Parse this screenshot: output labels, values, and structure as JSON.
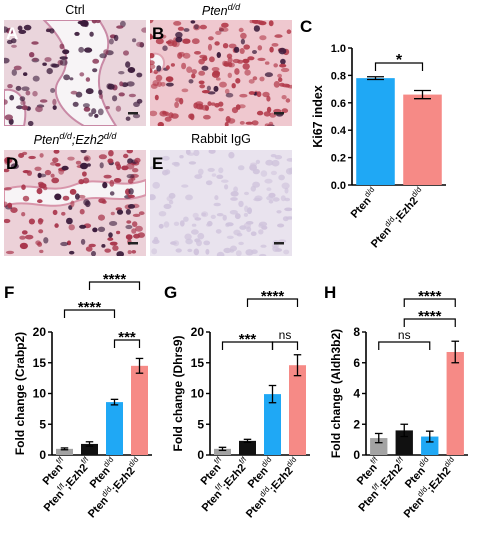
{
  "figure": {
    "panels": {
      "A": {
        "letter": "A",
        "title": "Ctrl"
      },
      "B": {
        "letter": "B",
        "title_base": "Pten",
        "title_sup": "d/d"
      },
      "D": {
        "letter": "D",
        "title_base1": "Pten",
        "title_sup1": "d/d",
        "title_sep": ";",
        "title_base2": "Ezh2",
        "title_sup2": "d/d"
      },
      "E": {
        "letter": "E",
        "title": "Rabbit IgG"
      }
    },
    "colors": {
      "blue": "#1fa8f5",
      "salmon": "#f68a86",
      "gray": "#a3a3a3",
      "black": "#111111",
      "tissue_dark": "#3a1a3a",
      "tissue_red": "#b23a4a",
      "tissue_pink": "#e8c6cf",
      "tissue_igg": "#e9e3ee"
    }
  },
  "chart_data": [
    {
      "panel": "C",
      "type": "bar",
      "ylabel": "Ki67 index",
      "ylim": [
        0,
        1.0
      ],
      "yticks": [
        "0.0",
        "0.2",
        "0.4",
        "0.6",
        "0.8",
        "1.0"
      ],
      "categories": [
        {
          "base": "Pten",
          "sup": "d/d"
        },
        {
          "base": "Pten",
          "sup": "d/d",
          "base2": ";Ezh2",
          "sup2": "d/d"
        }
      ],
      "values": [
        0.78,
        0.66
      ],
      "errors": [
        0.01,
        0.03
      ],
      "bar_colors": [
        "blue",
        "salmon"
      ],
      "significance": [
        {
          "from": 0,
          "to": 1,
          "label": "*"
        }
      ]
    },
    {
      "panel": "F",
      "type": "bar",
      "ylabel": "Fold change (Crabp2)",
      "ylim": [
        0,
        20
      ],
      "yticks": [
        "0",
        "5",
        "10",
        "15",
        "20"
      ],
      "categories": [
        {
          "base": "Pten",
          "sup": "f/f"
        },
        {
          "base": "Pten",
          "sup": "f/f",
          "base2": ";Ezh2",
          "sup2": "f/f"
        },
        {
          "base": "Pten",
          "sup": "d/d"
        },
        {
          "base": "Pten",
          "sup": "d/d",
          "base2": ";Ezh2",
          "sup2": "d/d"
        }
      ],
      "values": [
        1.0,
        1.8,
        8.6,
        14.5
      ],
      "errors": [
        0.15,
        0.35,
        0.45,
        1.2
      ],
      "bar_colors": [
        "gray",
        "black",
        "blue",
        "salmon"
      ],
      "significance": [
        {
          "from": 2,
          "to": 3,
          "label": "***",
          "level": 0
        },
        {
          "from": 0,
          "to": 2,
          "label": "****",
          "level": 1
        },
        {
          "from": 1,
          "to": 3,
          "label": "****",
          "level": 2
        }
      ]
    },
    {
      "panel": "G",
      "type": "bar",
      "ylabel": "Fold change (Dhrs9)",
      "ylim": [
        0,
        20
      ],
      "yticks": [
        "0",
        "5",
        "10",
        "15",
        "20"
      ],
      "categories": [
        {
          "base": "Pten",
          "sup": "f/f"
        },
        {
          "base": "Pten",
          "sup": "f/f",
          "base2": ";Ezh2",
          "sup2": "f/f"
        },
        {
          "base": "Pten",
          "sup": "d/d"
        },
        {
          "base": "Pten",
          "sup": "d/d",
          "base2": ";Ezh2",
          "sup2": "d/d"
        }
      ],
      "values": [
        1.0,
        2.3,
        9.9,
        14.6
      ],
      "errors": [
        0.25,
        0.25,
        1.4,
        1.7
      ],
      "bar_colors": [
        "gray",
        "black",
        "blue",
        "salmon"
      ],
      "significance": [
        {
          "from": 0,
          "to": 2,
          "label": "***",
          "level": 0
        },
        {
          "from": 2,
          "to": 3,
          "label": "ns",
          "level": 0
        },
        {
          "from": 1,
          "to": 3,
          "label": "****",
          "level": 1
        }
      ]
    },
    {
      "panel": "H",
      "type": "bar",
      "ylabel": "Fold change (Aldh3b2)",
      "ylim": [
        0,
        8
      ],
      "yticks": [
        "0",
        "2",
        "4",
        "6",
        "8"
      ],
      "categories": [
        {
          "base": "Pten",
          "sup": "f/f"
        },
        {
          "base": "Pten",
          "sup": "f/f",
          "base2": ";Ezh2",
          "sup2": "f/f"
        },
        {
          "base": "Pten",
          "sup": "d/d"
        },
        {
          "base": "Pten",
          "sup": "d/d",
          "base2": ";Ezh2",
          "sup2": "d/d"
        }
      ],
      "values": [
        1.1,
        1.6,
        1.2,
        6.7
      ],
      "errors": [
        0.3,
        0.4,
        0.35,
        0.7
      ],
      "bar_colors": [
        "gray",
        "black",
        "blue",
        "salmon"
      ],
      "significance": [
        {
          "from": 1,
          "to": 3,
          "label": "****",
          "level": 0
        },
        {
          "from": 0,
          "to": 2,
          "label": "ns",
          "level": 1
        },
        {
          "from": 1,
          "to": 3,
          "label": "****",
          "level": 2
        }
      ]
    }
  ]
}
